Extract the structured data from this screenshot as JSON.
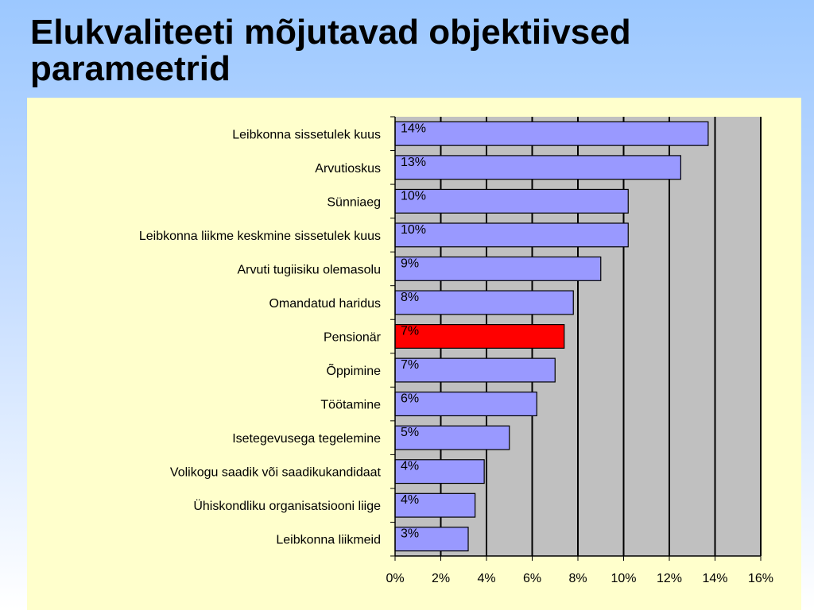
{
  "slide": {
    "title": "Elukvaliteeti mõjutavad objektiivsed parameetrid"
  },
  "colors": {
    "bar": "#9999ff",
    "highlight": "#ff0000",
    "plot_bg": "#c0c0c0",
    "panel_bg": "#ffffcc"
  },
  "chart_data": {
    "type": "bar",
    "orientation": "horizontal",
    "categories": [
      "Leibkonna sissetulek kuus",
      "Arvutioskus",
      "Sünniaeg",
      "Leibkonna liikme keskmine sissetulek kuus",
      "Arvuti tugiisiku olemasolu",
      "Omandatud haridus",
      "Pensionär",
      "Õppimine",
      "Töötamine",
      "Isetegevusega tegelemine",
      "Volikogu saadik või saadikukandidaat",
      "Ühiskondliku organisatsiooni liige",
      "Leibkonna liikmeid"
    ],
    "values": [
      13.7,
      12.5,
      10.2,
      10.2,
      9.0,
      7.8,
      7.4,
      7.0,
      6.2,
      5.0,
      3.9,
      3.5,
      3.2
    ],
    "data_labels": [
      "14%",
      "13%",
      "10%",
      "10%",
      "9%",
      "8%",
      "7%",
      "7%",
      "6%",
      "5%",
      "4%",
      "4%",
      "3%"
    ],
    "highlighted_category": "Pensionär",
    "xlim": [
      0,
      16
    ],
    "xticks": [
      0,
      2,
      4,
      6,
      8,
      10,
      12,
      14,
      16
    ],
    "xtick_labels": [
      "0%",
      "2%",
      "4%",
      "6%",
      "8%",
      "10%",
      "12%",
      "14%",
      "16%"
    ],
    "grid": "vertical",
    "legend": "none"
  }
}
